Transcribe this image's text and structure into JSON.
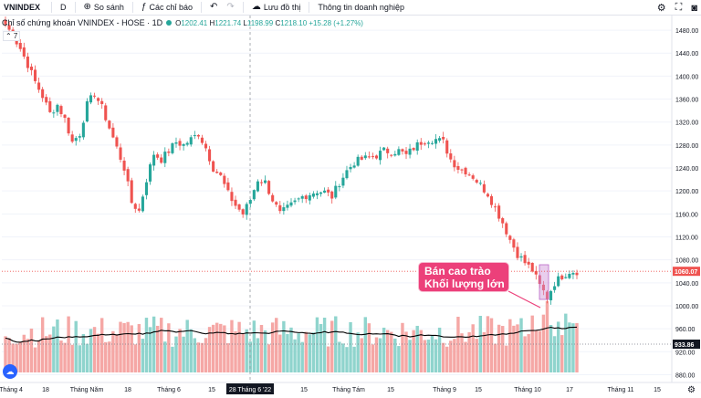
{
  "toolbar": {
    "symbol": "VNINDEX",
    "interval": "D",
    "compare": "So sánh",
    "indicators": "Các chỉ báo",
    "save": "Lưu đồ thị",
    "info": "Thông tin doanh nghiệp"
  },
  "legend": {
    "title": "Chỉ số chứng khoán VNINDEX - HOSE · 1D",
    "open_label": "O",
    "open": "1202.41",
    "high_label": "H",
    "high": "1221.74",
    "low_label": "L",
    "low": "1198.99",
    "close_label": "C",
    "close": "1218.10",
    "change": "+15.28 (+1.27%)",
    "collapse": "⌃ 7"
  },
  "annotation": {
    "line1": "Bán cao trào",
    "line2": "Khối lượng lớn"
  },
  "colors": {
    "up": "#26a69a",
    "down": "#ef5350",
    "vol_up": "#8fd4cd",
    "vol_down": "#f5a7a5",
    "ma": "#000000",
    "annot": "#ec407a"
  },
  "chart_data": {
    "type": "candlestick",
    "y_ticks": [
      880,
      920,
      960,
      1000,
      1040,
      1080,
      1120,
      1160,
      1200,
      1240,
      1280,
      1320,
      1360,
      1400,
      1440,
      1480
    ],
    "ylim": [
      868,
      1496
    ],
    "price_label": "1060.07",
    "ma_label": "933.86",
    "crosshair_label": "28 Tháng 6 '22",
    "x_ticks": [
      "Tháng 4",
      "18",
      "Tháng Năm",
      "18",
      "Tháng 6",
      "15",
      "28 Tháng 6 '22",
      "15",
      "Tháng Tám",
      "15",
      "Tháng 9",
      "15",
      "Tháng 10",
      "17",
      "Tháng 11",
      "15"
    ],
    "close_anchors": [
      1490,
      1470,
      1448,
      1420,
      1390,
      1365,
      1335,
      1350,
      1325,
      1285,
      1300,
      1350,
      1370,
      1345,
      1310,
      1275,
      1240,
      1180,
      1165,
      1220,
      1265,
      1255,
      1270,
      1285,
      1280,
      1290,
      1300,
      1275,
      1240,
      1225,
      1195,
      1175,
      1160,
      1185,
      1220,
      1215,
      1185,
      1160,
      1170,
      1180,
      1190,
      1195,
      1200,
      1198,
      1190,
      1215,
      1235,
      1250,
      1255,
      1258,
      1262,
      1270,
      1268,
      1270,
      1262,
      1275,
      1285,
      1290,
      1290,
      1285,
      1255,
      1240,
      1235,
      1225,
      1210,
      1195,
      1170,
      1145,
      1115,
      1090,
      1075,
      1062,
      1035,
      1015,
      1040,
      1052,
      1060,
      1060
    ]
  }
}
